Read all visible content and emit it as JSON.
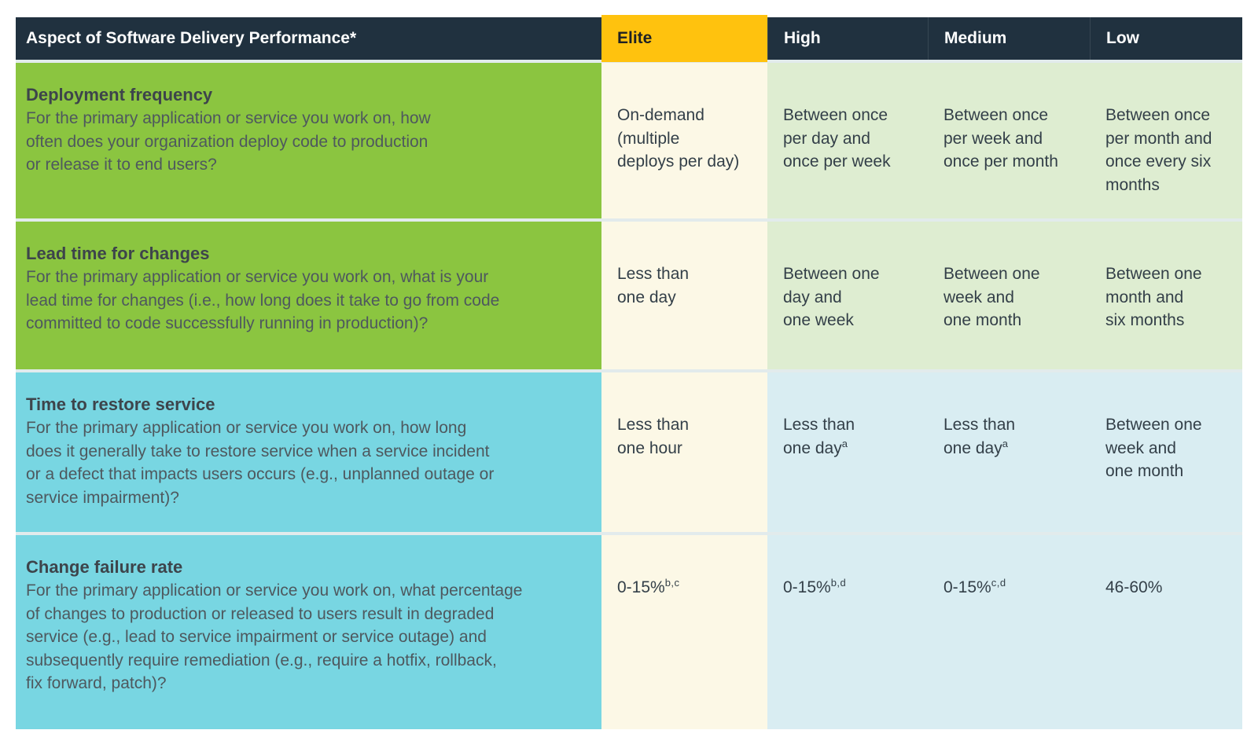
{
  "colors": {
    "header_bg": "#20313F",
    "header_text": "#FFFFFF",
    "elite_header_bg": "#FFC20E",
    "elite_header_text": "#1E2124",
    "row_green_bg": "#8BC540",
    "row_teal_bg": "#78D6E2",
    "elite_column_bg": "#FCF8E6",
    "tier_cells_green_bg": "#DEEDD1",
    "tier_cells_blue_bg": "#D9EDF2",
    "metric_title_text": "#3D444B",
    "metric_description_text": "#4E585E",
    "value_text": "#333F48",
    "row_separator": "#E2EBEC"
  },
  "header": {
    "aspect": "Aspect of Software Delivery Performance*",
    "elite": "Elite",
    "high": "High",
    "medium": "Medium",
    "low": "Low"
  },
  "rows": [
    {
      "title": "Deployment frequency",
      "description": "For the primary application or service you work on, how\noften does your organization deploy code to production\nor release it to end users?",
      "elite": {
        "text": "On-demand\n(multiple\ndeploys per day)",
        "sup": ""
      },
      "high": {
        "text": "Between once\nper day and\nonce per week",
        "sup": ""
      },
      "medium": {
        "text": "Between once\nper week and\nonce per month",
        "sup": ""
      },
      "low": {
        "text": "Between once\nper month and\nonce every six\nmonths",
        "sup": ""
      }
    },
    {
      "title": "Lead time for changes",
      "description": "For the primary application or service you work on, what is your\nlead time for changes (i.e., how long does it take to go from code\ncommitted to code successfully running in production)?",
      "elite": {
        "text": "Less than\none day",
        "sup": ""
      },
      "high": {
        "text": "Between one\nday and\none week",
        "sup": ""
      },
      "medium": {
        "text": "Between one\nweek and\none month",
        "sup": ""
      },
      "low": {
        "text": "Between one\nmonth and\nsix months",
        "sup": ""
      }
    },
    {
      "title": "Time to restore service",
      "description": "For the primary application or service you work on, how long\ndoes it generally take to restore service when a service incident\nor a defect that impacts users occurs (e.g., unplanned outage or\nservice impairment)?",
      "elite": {
        "text": "Less than\none hour",
        "sup": ""
      },
      "high": {
        "text": "Less than\none day",
        "sup": "a"
      },
      "medium": {
        "text": "Less than\none day",
        "sup": "a"
      },
      "low": {
        "text": "Between one\nweek and\none month",
        "sup": ""
      }
    },
    {
      "title": "Change failure rate",
      "description": "For the primary application or service you work on, what percentage\nof changes to production or released to users result in degraded\nservice (e.g., lead to service impairment or service outage) and\nsubsequently require remediation (e.g., require a hotfix, rollback,\nfix forward, patch)?",
      "elite": {
        "text": "0-15%",
        "sup": "b,c"
      },
      "high": {
        "text": "0-15%",
        "sup": "b,d"
      },
      "medium": {
        "text": "0-15%",
        "sup": "c,d"
      },
      "low": {
        "text": "46-60%",
        "sup": ""
      }
    }
  ]
}
